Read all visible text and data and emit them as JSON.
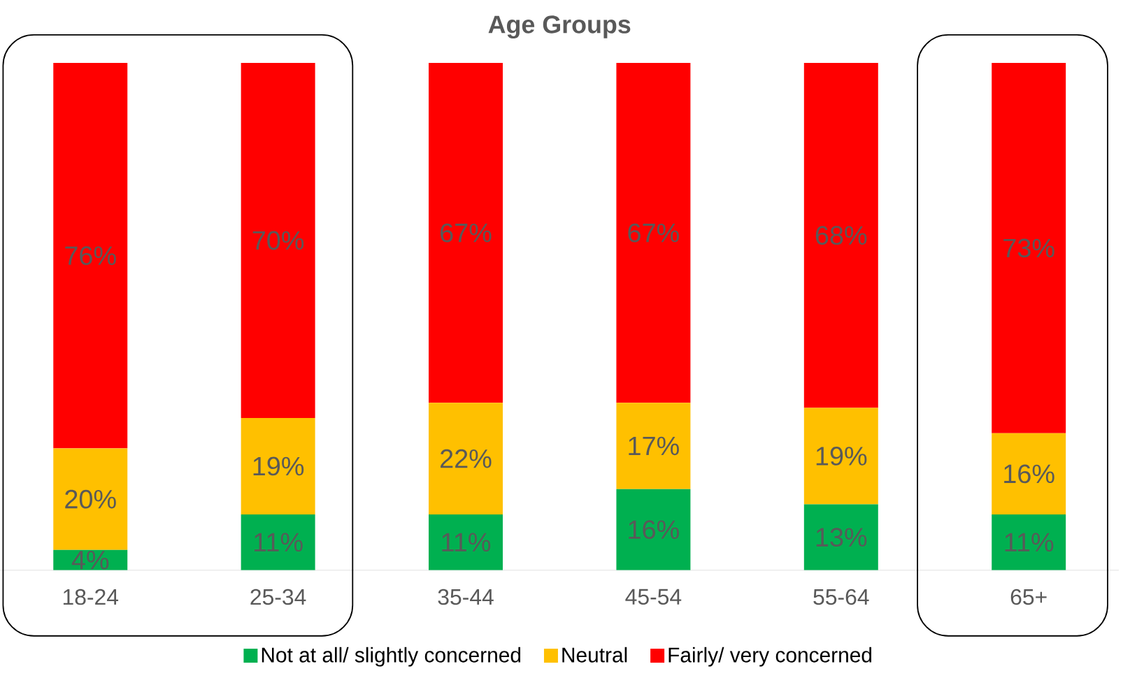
{
  "chart_data": {
    "type": "bar",
    "stacked": true,
    "title": "Age Groups",
    "categories": [
      "18-24",
      "25-34",
      "35-44",
      "45-54",
      "55-64",
      "65+"
    ],
    "series": [
      {
        "name": "Not at all/ slightly concerned",
        "color": "#00b050",
        "values": [
          4,
          11,
          11,
          16,
          13,
          11
        ],
        "value_labels": [
          "4%",
          "11%",
          "11%",
          "16%",
          "13%",
          "11%"
        ]
      },
      {
        "name": "Neutral",
        "color": "#ffc000",
        "values": [
          20,
          19,
          22,
          17,
          19,
          16
        ],
        "value_labels": [
          "20%",
          "19%",
          "22%",
          "17%",
          "19%",
          "16%"
        ]
      },
      {
        "name": "Fairly/ very concerned",
        "color": "#ff0000",
        "values": [
          76,
          70,
          67,
          67,
          68,
          73
        ],
        "value_labels": [
          "76%",
          "70%",
          "67%",
          "67%",
          "68%",
          "73%"
        ]
      }
    ],
    "legend": "bottom"
  }
}
